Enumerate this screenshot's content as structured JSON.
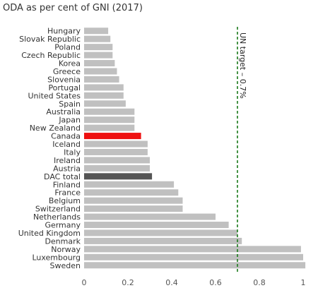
{
  "chart_data": {
    "type": "bar",
    "orientation": "horizontal",
    "title": "ODA as per cent of GNI (2017)",
    "xlabel": "",
    "ylabel": "",
    "xlim": [
      0,
      1
    ],
    "xticks": [
      "0",
      "0.2",
      "0.4",
      "0.6",
      "0.8",
      "1"
    ],
    "grid": false,
    "categories": [
      "Hungary",
      "Slovak Republic",
      "Poland",
      "Czech Republic",
      "Korea",
      "Greece",
      "Slovenia",
      "Portugal",
      "United States",
      "Spain",
      "Australia",
      "Japan",
      "New Zealand",
      "Canada",
      "Iceland",
      "Italy",
      "Ireland",
      "Austria",
      "DAC total",
      "Finland",
      "France",
      "Belgium",
      "Switzerland",
      "Netherlands",
      "Germany",
      "United Kingdom",
      "Denmark",
      "Norway",
      "Luxembourg",
      "Sweden"
    ],
    "values": [
      0.11,
      0.12,
      0.13,
      0.13,
      0.14,
      0.15,
      0.16,
      0.18,
      0.18,
      0.19,
      0.23,
      0.23,
      0.23,
      0.26,
      0.29,
      0.29,
      0.3,
      0.3,
      0.31,
      0.41,
      0.43,
      0.45,
      0.45,
      0.6,
      0.66,
      0.7,
      0.72,
      0.99,
      1.0,
      1.01
    ],
    "highlight": {
      "Canada": "#ee1111",
      "DAC total": "#555555"
    },
    "bar_color": "#c0c0c0",
    "reference_line": {
      "value": 0.7,
      "label": "UN target – 0.7%",
      "color": "#1a7a1a",
      "style": "dashed"
    }
  }
}
